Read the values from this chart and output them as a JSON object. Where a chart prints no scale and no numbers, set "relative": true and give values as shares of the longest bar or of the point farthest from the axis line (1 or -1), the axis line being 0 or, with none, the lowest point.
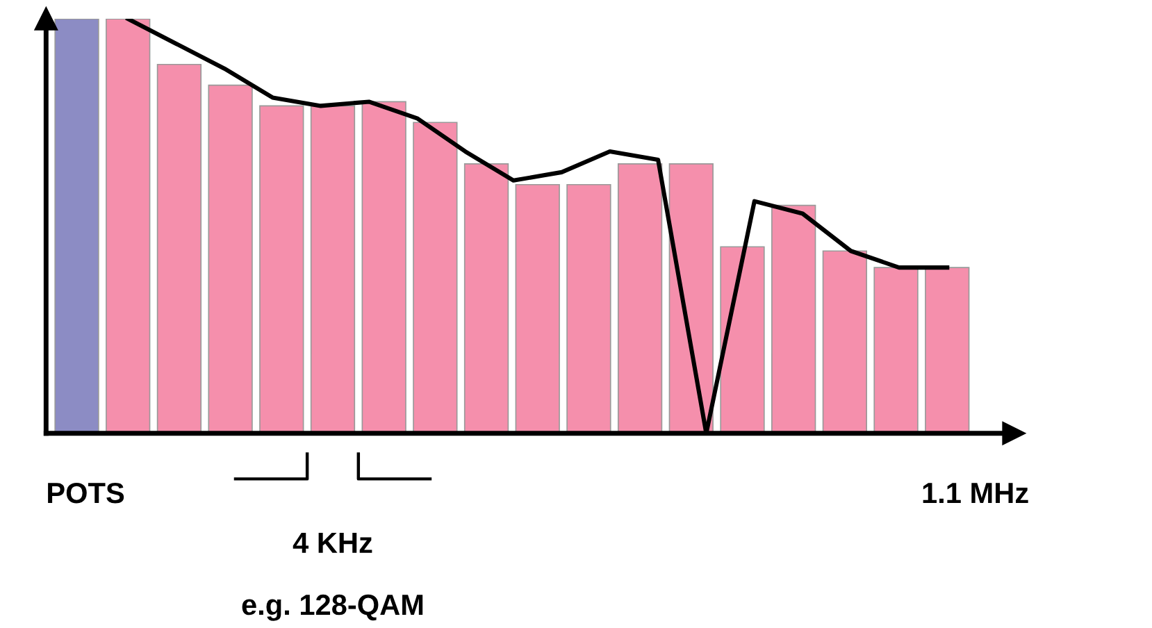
{
  "chart_data": [
    {
      "type": "bar",
      "relative": true,
      "categories": [
        null,
        null,
        null,
        null,
        null,
        null,
        null,
        null,
        null,
        null,
        null,
        null,
        null,
        null,
        null,
        null,
        null,
        null
      ],
      "values": [
        1,
        1,
        0.89,
        0.84,
        0.79,
        0.79,
        0.8,
        0.75,
        0.65,
        0.6,
        0.6,
        0.65,
        0.65,
        0.45,
        0.55,
        0.44,
        0.4,
        0.4
      ],
      "colors": [
        "#8c8cc4",
        "#f58fac",
        "#f58fac",
        "#f58fac",
        "#f58fac",
        "#f58fac",
        "#f58fac",
        "#f58fac",
        "#f58fac",
        "#f58fac",
        "#f58fac",
        "#f58fac",
        "#f58fac",
        "#f58fac",
        "#f58fac",
        "#f58fac",
        "#f58fac",
        "#f58fac"
      ],
      "annotations": [
        "POTS",
        "1.1 MHz",
        "4 KHz",
        "e.g. 128-QAM"
      ]
    },
    {
      "type": "line",
      "relative": true,
      "categories": [
        null,
        null,
        null,
        null,
        null,
        null,
        null,
        null,
        null,
        null,
        null,
        null,
        null,
        null,
        null,
        null,
        null,
        null
      ],
      "series": [
        {
          "color": "#000000",
          "values": [
            1,
            0.94,
            0.88,
            0.81,
            0.79,
            0.8,
            0.76,
            0.68,
            0.61,
            0.63,
            0.68,
            0.66,
            0,
            0.56,
            0.53,
            0.44,
            0.4,
            0.4
          ]
        }
      ]
    }
  ]
}
